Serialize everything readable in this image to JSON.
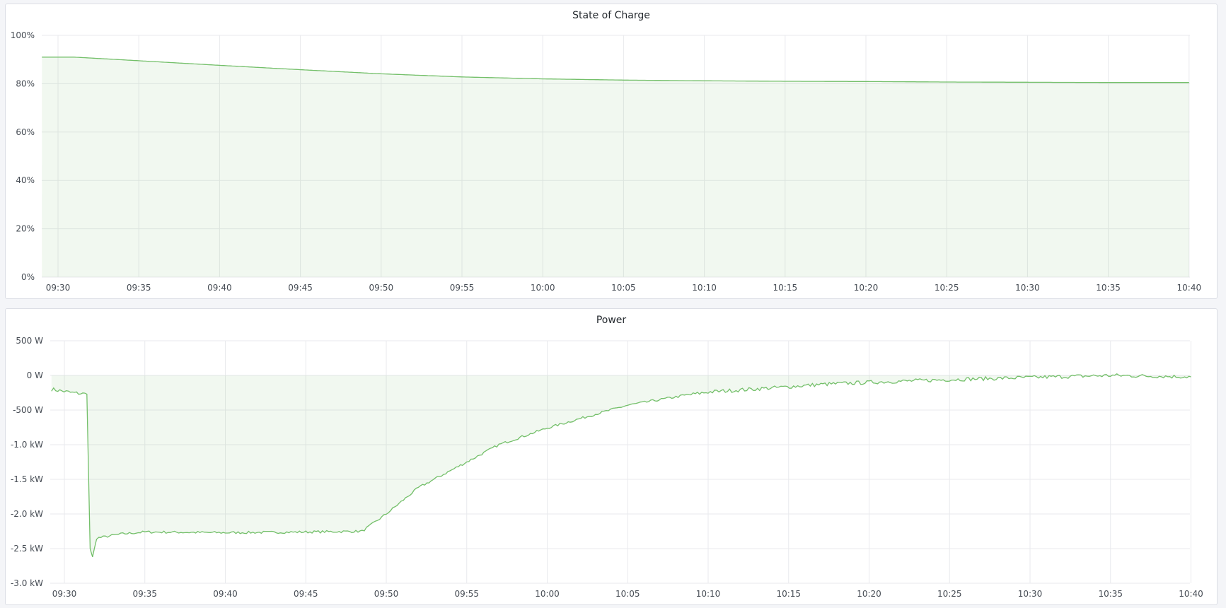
{
  "colors": {
    "line": "#73bf69",
    "fill": "#73bf69",
    "grid": "#e9eaed",
    "background": "#f4f5f8"
  },
  "chart_data": [
    {
      "type": "area",
      "title": "State of Charge",
      "xlabel": "",
      "ylabel": "",
      "x_ticks": [
        "09:30",
        "09:35",
        "09:40",
        "09:45",
        "09:50",
        "09:55",
        "10:00",
        "10:05",
        "10:10",
        "10:15",
        "10:20",
        "10:25",
        "10:30",
        "10:35",
        "10:40"
      ],
      "y_ticks": [
        "0%",
        "20%",
        "40%",
        "60%",
        "80%",
        "100%"
      ],
      "y_tick_values": [
        0,
        20,
        40,
        60,
        80,
        100
      ],
      "ylim": [
        0,
        100
      ],
      "xlim": [
        "09:29",
        "10:40"
      ],
      "grid": true,
      "series": [
        {
          "x": [
            "09:29",
            "09:31",
            "09:35",
            "09:40",
            "09:45",
            "09:50",
            "09:55",
            "10:00",
            "10:05",
            "10:10",
            "10:15",
            "10:20",
            "10:25",
            "10:30",
            "10:35",
            "10:40"
          ],
          "y": [
            91,
            91,
            89.5,
            87.6,
            85.8,
            84.1,
            82.8,
            82.0,
            81.5,
            81.2,
            81.0,
            80.9,
            80.7,
            80.6,
            80.5,
            80.5
          ]
        }
      ]
    },
    {
      "type": "area",
      "title": "Power",
      "xlabel": "",
      "ylabel": "",
      "x_ticks": [
        "09:30",
        "09:35",
        "09:40",
        "09:45",
        "09:50",
        "09:55",
        "10:00",
        "10:05",
        "10:10",
        "10:15",
        "10:20",
        "10:25",
        "10:30",
        "10:35",
        "10:40"
      ],
      "y_ticks": [
        "500 W",
        "0 W",
        "-500 W",
        "-1.0 kW",
        "-1.5 kW",
        "-2.0 kW",
        "-2.5 kW",
        "-3.0 kW"
      ],
      "y_tick_values": [
        500,
        0,
        -500,
        -1000,
        -1500,
        -2000,
        -2500,
        -3000
      ],
      "ylim": [
        -3000,
        500
      ],
      "xlim": [
        "09:29",
        "10:40"
      ],
      "grid": true,
      "series": [
        {
          "x": [
            "09:29.2",
            "09:30.5",
            "09:31.4",
            "09:31.6",
            "09:31.75",
            "09:32",
            "09:33.5",
            "09:35",
            "09:40",
            "09:45",
            "09:48.5",
            "09:50",
            "09:52",
            "09:55",
            "09:57",
            "10:00",
            "10:03",
            "10:05",
            "10:08",
            "10:10",
            "10:14",
            "10:17",
            "10:20",
            "10:25",
            "10:30",
            "10:35",
            "10:40"
          ],
          "y": [
            -200,
            -250,
            -270,
            -2500,
            -2620,
            -2350,
            -2290,
            -2260,
            -2270,
            -2260,
            -2250,
            -2000,
            -1620,
            -1250,
            -1000,
            -760,
            -560,
            -430,
            -310,
            -240,
            -180,
            -130,
            -100,
            -60,
            -30,
            0,
            -20
          ]
        }
      ]
    }
  ]
}
